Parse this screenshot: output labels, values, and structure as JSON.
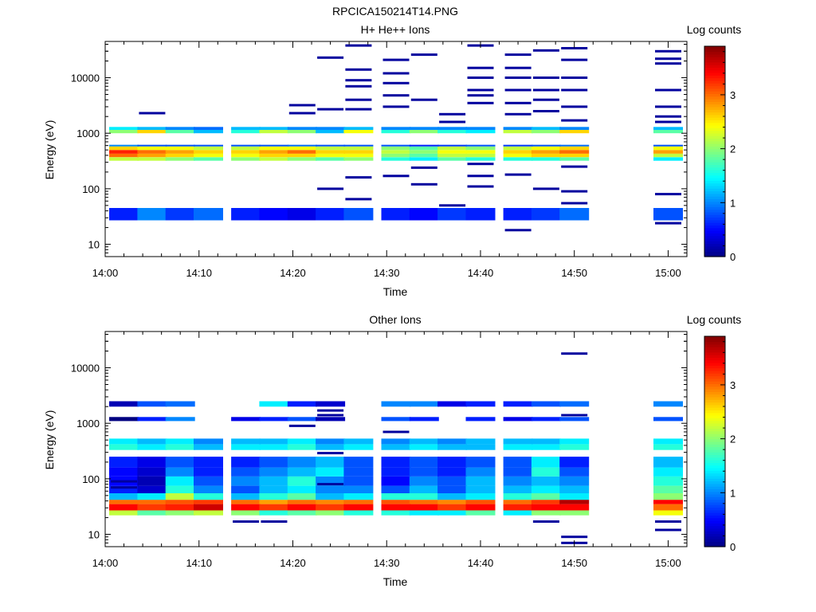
{
  "figure": {
    "title": "RPCICA150214T14.PNG"
  },
  "colormap": {
    "name": "jet",
    "stops": [
      "#000080",
      "#0000ff",
      "#0080ff",
      "#00ffff",
      "#80ff80",
      "#ffff00",
      "#ff8000",
      "#ff0000",
      "#800000"
    ]
  },
  "chart_data": [
    {
      "type": "heatmap",
      "title": "H+ He++ Ions",
      "xlabel": "Time",
      "ylabel": "Energy (eV)",
      "colorbar_label": "Log counts",
      "x_range": [
        "14:00",
        "15:02"
      ],
      "x_ticks": [
        "14:00",
        "14:10",
        "14:20",
        "14:30",
        "14:40",
        "14:50",
        "15:00"
      ],
      "y_scale": "log",
      "y_range": [
        6,
        45000
      ],
      "y_ticks": [
        "10",
        "100",
        "1000",
        "10000"
      ],
      "c_range": [
        0,
        3.9
      ],
      "c_ticks": [
        "0",
        "1",
        "2",
        "3"
      ],
      "time_bins": [
        "14:02",
        "14:05",
        "14:08",
        "14:11",
        "14:15",
        "14:18",
        "14:21",
        "14:24",
        "14:27",
        "14:31",
        "14:34",
        "14:37",
        "14:40",
        "14:44",
        "14:47",
        "14:50",
        "15:00"
      ],
      "bands": [
        {
          "emin": 27,
          "emax": 45,
          "values": [
            0.6,
            1.0,
            0.7,
            0.9,
            0.6,
            0.5,
            0.4,
            0.6,
            0.8,
            0.6,
            0.5,
            0.7,
            0.6,
            0.6,
            0.7,
            0.9,
            0.8
          ]
        },
        {
          "emin": 320,
          "emax": 370,
          "values": [
            2.2,
            2.2,
            2.0,
            1.8,
            2.0,
            2.2,
            2.0,
            1.8,
            2.0,
            1.6,
            1.4,
            1.8,
            1.6,
            1.6,
            1.6,
            1.8,
            1.4
          ]
        },
        {
          "emin": 370,
          "emax": 430,
          "values": [
            3.0,
            2.8,
            2.6,
            2.4,
            2.4,
            2.6,
            2.6,
            2.4,
            2.4,
            2.0,
            1.8,
            2.2,
            2.2,
            2.4,
            2.6,
            2.6,
            2.2
          ]
        },
        {
          "emin": 430,
          "emax": 500,
          "values": [
            3.3,
            3.0,
            2.8,
            2.6,
            2.6,
            2.8,
            3.0,
            2.6,
            2.6,
            2.2,
            2.0,
            2.4,
            2.4,
            2.6,
            2.8,
            3.0,
            2.8
          ]
        },
        {
          "emin": 500,
          "emax": 580,
          "values": [
            2.6,
            2.4,
            2.4,
            2.2,
            2.2,
            2.4,
            2.4,
            2.2,
            2.2,
            2.0,
            1.8,
            2.2,
            2.0,
            2.2,
            2.4,
            2.6,
            2.4
          ]
        },
        {
          "emin": 580,
          "emax": 620,
          "values": [
            1.0,
            0.8,
            0.8,
            0.8,
            0.8,
            0.8,
            0.9,
            0.8,
            0.8,
            0.8,
            0.6,
            0.7,
            0.8,
            0.7,
            0.8,
            0.9,
            0.8
          ]
        },
        {
          "emin": 1000,
          "emax": 1150,
          "values": [
            2.0,
            2.6,
            1.8,
            1.2,
            1.6,
            2.2,
            2.0,
            1.2,
            2.4,
            1.6,
            2.0,
            1.6,
            1.4,
            2.2,
            2.0,
            2.6,
            1.8
          ]
        },
        {
          "emin": 1150,
          "emax": 1300,
          "values": [
            1.4,
            1.2,
            1.0,
            0.9,
            1.2,
            1.2,
            1.0,
            1.0,
            1.2,
            1.0,
            1.0,
            1.0,
            1.0,
            1.0,
            1.2,
            1.0,
            1.2
          ]
        }
      ],
      "sparse": [
        {
          "t": "14:05",
          "e": 2300
        },
        {
          "t": "14:21",
          "e": 3200
        },
        {
          "t": "14:21",
          "e": 2300
        },
        {
          "t": "14:24",
          "e": 23000
        },
        {
          "t": "14:24",
          "e": 2700
        },
        {
          "t": "14:24",
          "e": 100
        },
        {
          "t": "14:27",
          "e": 38000
        },
        {
          "t": "14:27",
          "e": 14000
        },
        {
          "t": "14:27",
          "e": 9000
        },
        {
          "t": "14:27",
          "e": 7000
        },
        {
          "t": "14:27",
          "e": 4000
        },
        {
          "t": "14:27",
          "e": 2700
        },
        {
          "t": "14:27",
          "e": 160
        },
        {
          "t": "14:27",
          "e": 65
        },
        {
          "t": "14:31",
          "e": 21000
        },
        {
          "t": "14:31",
          "e": 12000
        },
        {
          "t": "14:31",
          "e": 8000
        },
        {
          "t": "14:31",
          "e": 4800
        },
        {
          "t": "14:31",
          "e": 3000
        },
        {
          "t": "14:31",
          "e": 170
        },
        {
          "t": "14:34",
          "e": 26000
        },
        {
          "t": "14:34",
          "e": 4000
        },
        {
          "t": "14:34",
          "e": 240
        },
        {
          "t": "14:34",
          "e": 120
        },
        {
          "t": "14:37",
          "e": 2200
        },
        {
          "t": "14:37",
          "e": 1600
        },
        {
          "t": "14:37",
          "e": 50
        },
        {
          "t": "14:40",
          "e": 38000
        },
        {
          "t": "14:40",
          "e": 15000
        },
        {
          "t": "14:40",
          "e": 10000
        },
        {
          "t": "14:40",
          "e": 6000
        },
        {
          "t": "14:40",
          "e": 4800
        },
        {
          "t": "14:40",
          "e": 3500
        },
        {
          "t": "14:40",
          "e": 280
        },
        {
          "t": "14:40",
          "e": 170
        },
        {
          "t": "14:40",
          "e": 110
        },
        {
          "t": "14:44",
          "e": 26000
        },
        {
          "t": "14:44",
          "e": 15000
        },
        {
          "t": "14:44",
          "e": 10000
        },
        {
          "t": "14:44",
          "e": 6000
        },
        {
          "t": "14:44",
          "e": 3500
        },
        {
          "t": "14:44",
          "e": 2200
        },
        {
          "t": "14:44",
          "e": 180
        },
        {
          "t": "14:44",
          "e": 18
        },
        {
          "t": "14:47",
          "e": 31000
        },
        {
          "t": "14:47",
          "e": 10000
        },
        {
          "t": "14:47",
          "e": 6000
        },
        {
          "t": "14:47",
          "e": 4000
        },
        {
          "t": "14:47",
          "e": 2500
        },
        {
          "t": "14:47",
          "e": 100
        },
        {
          "t": "14:50",
          "e": 34000
        },
        {
          "t": "14:50",
          "e": 21000
        },
        {
          "t": "14:50",
          "e": 10000
        },
        {
          "t": "14:50",
          "e": 6000
        },
        {
          "t": "14:50",
          "e": 3000
        },
        {
          "t": "14:50",
          "e": 1700
        },
        {
          "t": "14:50",
          "e": 250
        },
        {
          "t": "14:50",
          "e": 90
        },
        {
          "t": "14:50",
          "e": 55
        },
        {
          "t": "15:00",
          "e": 30000
        },
        {
          "t": "15:00",
          "e": 22000
        },
        {
          "t": "15:00",
          "e": 18000
        },
        {
          "t": "15:00",
          "e": 6000
        },
        {
          "t": "15:00",
          "e": 3000
        },
        {
          "t": "15:00",
          "e": 2000
        },
        {
          "t": "15:00",
          "e": 1600
        },
        {
          "t": "15:00",
          "e": 80
        },
        {
          "t": "15:00",
          "e": 24
        }
      ]
    },
    {
      "type": "heatmap",
      "title": "Other Ions",
      "xlabel": "Time",
      "ylabel": "Energy (eV)",
      "colorbar_label": "Log counts",
      "x_range": [
        "14:00",
        "15:02"
      ],
      "x_ticks": [
        "14:00",
        "14:10",
        "14:20",
        "14:30",
        "14:40",
        "14:50",
        "15:00"
      ],
      "y_scale": "log",
      "y_range": [
        6,
        45000
      ],
      "y_ticks": [
        "10",
        "100",
        "1000",
        "10000"
      ],
      "c_range": [
        0,
        3.9
      ],
      "c_ticks": [
        "0",
        "1",
        "2",
        "3"
      ],
      "time_bins": [
        "14:02",
        "14:05",
        "14:08",
        "14:11",
        "14:15",
        "14:18",
        "14:21",
        "14:24",
        "14:27",
        "14:31",
        "14:34",
        "14:37",
        "14:40",
        "14:44",
        "14:47",
        "14:50",
        "15:00"
      ],
      "bands": [
        {
          "emin": 22,
          "emax": 27,
          "values": [
            2.2,
            1.8,
            2.0,
            2.2,
            2.0,
            1.6,
            1.8,
            2.0,
            1.6,
            1.6,
            1.4,
            1.4,
            1.8,
            1.4,
            2.0,
            2.0,
            2.4
          ]
        },
        {
          "emin": 27,
          "emax": 35,
          "values": [
            3.4,
            3.2,
            3.3,
            3.6,
            3.4,
            3.2,
            3.4,
            3.2,
            3.4,
            3.4,
            3.4,
            3.2,
            3.4,
            3.3,
            3.4,
            3.4,
            3.0
          ]
        },
        {
          "emin": 35,
          "emax": 42,
          "values": [
            3.0,
            3.0,
            3.1,
            3.2,
            3.0,
            2.8,
            3.0,
            2.9,
            3.0,
            3.1,
            3.0,
            2.9,
            3.1,
            3.0,
            3.2,
            3.7,
            3.4
          ]
        },
        {
          "emin": 42,
          "emax": 55,
          "values": [
            1.2,
            1.4,
            2.2,
            1.6,
            1.2,
            1.6,
            1.8,
            1.2,
            1.4,
            1.6,
            1.6,
            1.2,
            1.4,
            1.6,
            1.8,
            1.4,
            2.0
          ]
        },
        {
          "emin": 55,
          "emax": 75,
          "values": [
            0.6,
            0.3,
            1.6,
            1.0,
            0.8,
            1.2,
            1.4,
            1.0,
            1.0,
            0.8,
            1.2,
            0.8,
            1.2,
            1.2,
            1.4,
            1.2,
            1.8
          ]
        },
        {
          "emin": 75,
          "emax": 110,
          "values": [
            0.5,
            0.2,
            1.4,
            0.8,
            1.0,
            1.2,
            1.6,
            1.0,
            0.8,
            0.5,
            1.0,
            0.8,
            1.2,
            1.0,
            1.2,
            1.0,
            1.6
          ]
        },
        {
          "emin": 110,
          "emax": 160,
          "values": [
            0.5,
            0.3,
            1.0,
            0.6,
            0.8,
            1.0,
            1.2,
            1.4,
            0.8,
            0.6,
            0.8,
            0.6,
            1.0,
            0.8,
            1.6,
            0.8,
            1.4
          ]
        },
        {
          "emin": 160,
          "emax": 250,
          "values": [
            0.6,
            0.4,
            0.8,
            0.6,
            0.6,
            0.8,
            1.0,
            1.2,
            0.8,
            0.6,
            0.8,
            0.6,
            0.8,
            0.8,
            1.4,
            0.6,
            1.2
          ]
        },
        {
          "emin": 330,
          "emax": 420,
          "values": [
            1.6,
            1.4,
            1.6,
            1.2,
            1.4,
            1.4,
            1.6,
            1.2,
            1.4,
            1.2,
            1.4,
            1.2,
            1.2,
            1.4,
            1.4,
            1.6,
            1.6
          ]
        },
        {
          "emin": 420,
          "emax": 530,
          "values": [
            1.4,
            1.2,
            1.4,
            1.0,
            1.2,
            1.2,
            1.4,
            1.0,
            1.2,
            1.0,
            1.2,
            1.0,
            1.2,
            1.2,
            1.2,
            1.4,
            1.4
          ]
        },
        {
          "emin": 1100,
          "emax": 1300,
          "values": [
            0.0,
            0.6,
            1.0,
            -1,
            0.4,
            0.6,
            0.8,
            0.2,
            -1,
            0.8,
            0.6,
            -1,
            0.6,
            0.4,
            0.6,
            0.8,
            0.8
          ]
        },
        {
          "emin": 2000,
          "emax": 2500,
          "values": [
            0.2,
            0.8,
            0.9,
            -1,
            -1,
            1.4,
            0.6,
            0.3,
            -1,
            1.0,
            1.0,
            0.4,
            0.6,
            0.6,
            0.8,
            0.9,
            1.0
          ]
        }
      ],
      "sparse": [
        {
          "t": "14:02",
          "e": 90
        },
        {
          "t": "14:02",
          "e": 70
        },
        {
          "t": "14:15",
          "e": 17
        },
        {
          "t": "14:18",
          "e": 17
        },
        {
          "t": "14:21",
          "e": 900
        },
        {
          "t": "14:24",
          "e": 1400
        },
        {
          "t": "14:24",
          "e": 1700
        },
        {
          "t": "14:24",
          "e": 290
        },
        {
          "t": "14:24",
          "e": 80
        },
        {
          "t": "14:31",
          "e": 700
        },
        {
          "t": "14:47",
          "e": 17
        },
        {
          "t": "14:50",
          "e": 18000
        },
        {
          "t": "14:50",
          "e": 1400
        },
        {
          "t": "14:50",
          "e": 9
        },
        {
          "t": "14:50",
          "e": 7
        },
        {
          "t": "15:00",
          "e": 17
        },
        {
          "t": "15:00",
          "e": 12
        }
      ]
    }
  ]
}
